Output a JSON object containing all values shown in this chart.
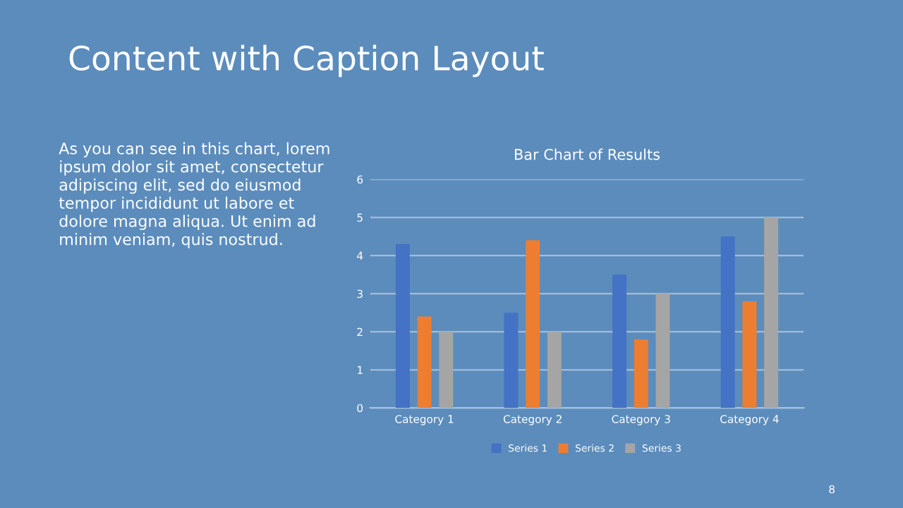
{
  "chart_data": {
    "type": "bar",
    "title": "Bar Chart of Results",
    "categories": [
      "Category 1",
      "Category 2",
      "Category 3",
      "Category 4"
    ],
    "series": [
      {
        "name": "Series 1",
        "color": "#4472c4",
        "values": [
          4.3,
          2.5,
          3.5,
          4.5
        ]
      },
      {
        "name": "Series 2",
        "color": "#ed7d31",
        "values": [
          2.4,
          4.4,
          1.8,
          2.8
        ]
      },
      {
        "name": "Series 3",
        "color": "#a5a5a5",
        "values": [
          2,
          2,
          3,
          5
        ]
      }
    ],
    "ylim": [
      0,
      6
    ],
    "yticks": [
      0,
      1,
      2,
      3,
      4,
      5,
      6
    ],
    "grid": "y",
    "legend": "bottom",
    "annotations": [
      "Content with Caption Layout",
      "As you can see in this chart, lorem\nipsum dolor sit amet, consectetur\nadipiscing elit, sed do eiusmod\ntempor incididunt ut labore et\ndolore magna aliqua. Ut enim ad\nminim veniam, quis nostrud.",
      "8"
    ]
  }
}
